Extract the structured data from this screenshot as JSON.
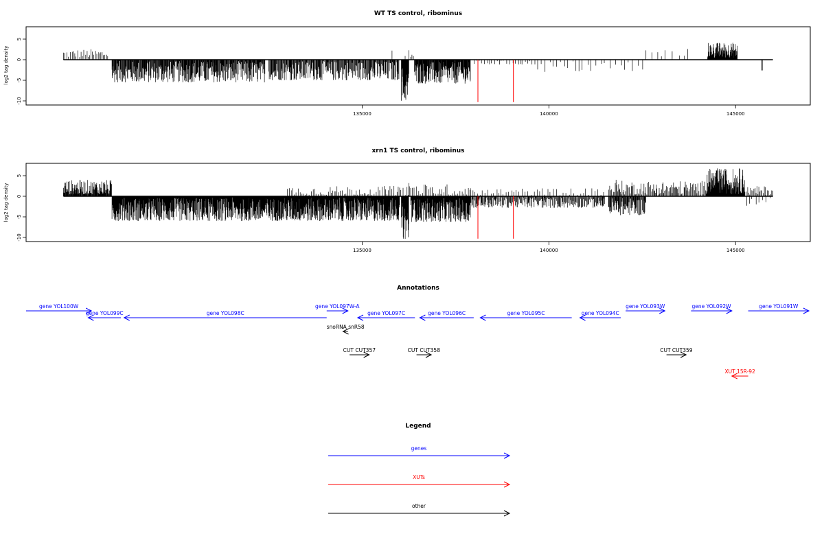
{
  "colors": {
    "gene": "#0000ff",
    "xut": "#ff0000",
    "other": "#000000",
    "marker": "#ff0000"
  },
  "chart_data": [
    {
      "type": "bar",
      "title": "WT TS control, ribominus",
      "ylabel": "log2 tag density",
      "xlim": [
        126000,
        147000
      ],
      "ylim": [
        -11,
        8
      ],
      "x_ticks": [
        135000,
        140000,
        145000
      ],
      "y_ticks": [
        5,
        0,
        -5,
        -10
      ],
      "grid": false,
      "red_marker_positions": [
        138100,
        139050
      ],
      "segments": [
        {
          "x0": 127000,
          "x1": 128200,
          "min": 0.5,
          "max": 2.6,
          "density": 0.35
        },
        {
          "x0": 128300,
          "x1": 132400,
          "min": -5.5,
          "max": -0.3,
          "density": 1.1
        },
        {
          "x0": 132500,
          "x1": 136000,
          "min": -5.0,
          "max": -0.3,
          "density": 0.9
        },
        {
          "x0": 136050,
          "x1": 136250,
          "min": -10,
          "max": -1.5,
          "density": 1.6
        },
        {
          "x0": 136300,
          "x1": 136400,
          "min": 0.5,
          "max": 2.2,
          "density": 0.4
        },
        {
          "x0": 136400,
          "x1": 137900,
          "min": -5.8,
          "max": -0.5,
          "density": 1.3
        },
        {
          "x0": 138000,
          "x1": 139700,
          "min": -1.2,
          "max": -0.2,
          "density": 0.2
        },
        {
          "x0": 139700,
          "x1": 142600,
          "min": -3.0,
          "max": -0.2,
          "density": 0.12
        },
        {
          "x0": 142600,
          "x1": 143800,
          "min": 0.4,
          "max": 2.8,
          "density": 0.1
        },
        {
          "x0": 144250,
          "x1": 145050,
          "min": 0.5,
          "max": 4.2,
          "density": 1.8
        },
        {
          "x0": 145700,
          "x1": 145720,
          "min": -2.6,
          "max": -2.6,
          "density": 1
        }
      ],
      "spikes": [
        [
          135800,
          2.2
        ],
        [
          136150,
          0.9
        ],
        [
          136250,
          2.3
        ],
        [
          135850,
          -4.8
        ]
      ]
    },
    {
      "type": "bar",
      "title": "xrn1 TS control, ribominus",
      "ylabel": "log2 tag density",
      "xlim": [
        126000,
        147000
      ],
      "ylim": [
        -11,
        8
      ],
      "x_ticks": [
        135000,
        140000,
        145000
      ],
      "y_ticks": [
        5,
        0,
        -5,
        -10
      ],
      "grid": false,
      "red_marker_positions": [
        138100,
        139050
      ],
      "segments": [
        {
          "x0": 127000,
          "x1": 128300,
          "min": 0.5,
          "max": 4.0,
          "density": 1.2
        },
        {
          "x0": 128300,
          "x1": 136000,
          "min": -6.0,
          "max": -0.3,
          "density": 1.6
        },
        {
          "x0": 133000,
          "x1": 136300,
          "min": 0.3,
          "max": 2.5,
          "density": 0.3
        },
        {
          "x0": 136050,
          "x1": 136250,
          "min": -10.4,
          "max": -1.5,
          "density": 1.8
        },
        {
          "x0": 136300,
          "x1": 137900,
          "min": -6.2,
          "max": -0.5,
          "density": 1.5
        },
        {
          "x0": 136300,
          "x1": 137900,
          "min": 0.3,
          "max": 3.0,
          "density": 0.3
        },
        {
          "x0": 137900,
          "x1": 141500,
          "min": -2.8,
          "max": -0.2,
          "density": 0.8
        },
        {
          "x0": 137900,
          "x1": 141500,
          "min": 0.3,
          "max": 2.0,
          "density": 0.2
        },
        {
          "x0": 141600,
          "x1": 142600,
          "min": -4.6,
          "max": -0.3,
          "density": 1.0
        },
        {
          "x0": 141600,
          "x1": 144200,
          "min": 0.4,
          "max": 3.8,
          "density": 0.6
        },
        {
          "x0": 144200,
          "x1": 145250,
          "min": 0.5,
          "max": 6.8,
          "density": 2.0
        },
        {
          "x0": 145250,
          "x1": 146000,
          "min": 0.3,
          "max": 2.5,
          "density": 0.5
        },
        {
          "x0": 145300,
          "x1": 146000,
          "min": -2.4,
          "max": -0.3,
          "density": 0.15
        }
      ],
      "spikes": [
        [
          135850,
          2.5
        ],
        [
          136250,
          3.2
        ],
        [
          145100,
          6.8
        ],
        [
          141800,
          4.0
        ]
      ]
    }
  ],
  "annotations": {
    "title": "Annotations",
    "features": [
      {
        "label": "gene YOL100W",
        "type": "gene",
        "dir": 1,
        "x0": 126000,
        "x1": 128000,
        "row": 0
      },
      {
        "label": "gene YOL099C",
        "type": "gene",
        "dir": -1,
        "x0": 127900,
        "x1": 128900,
        "row": 1
      },
      {
        "label": "gene YOL098C",
        "type": "gene",
        "dir": -1,
        "x0": 129000,
        "x1": 135200,
        "row": 1
      },
      {
        "label": "gene YOL097W-A",
        "type": "gene",
        "dir": 1,
        "x0": 135200,
        "x1": 135850,
        "row": 0
      },
      {
        "label": "gene YOL097C",
        "type": "gene",
        "dir": -1,
        "x0": 136150,
        "x1": 137900,
        "row": 1
      },
      {
        "label": "gene YOL096C",
        "type": "gene",
        "dir": -1,
        "x0": 138050,
        "x1": 139700,
        "row": 1
      },
      {
        "label": "gene YOL095C",
        "type": "gene",
        "dir": -1,
        "x0": 139900,
        "x1": 142700,
        "row": 1
      },
      {
        "label": "gene YOL094C",
        "type": "gene",
        "dir": -1,
        "x0": 142950,
        "x1": 144200,
        "row": 1
      },
      {
        "label": "gene YOL093W",
        "type": "gene",
        "dir": 1,
        "x0": 144350,
        "x1": 145550,
        "row": 0
      },
      {
        "label": "gene YOL092W",
        "type": "gene",
        "dir": 1,
        "x0": 146350,
        "x1": 147600,
        "row": 0
      },
      {
        "label": "gene YOL091W",
        "type": "gene",
        "dir": 1,
        "x0": 148100,
        "x1": 150000,
        "row": 0
      },
      {
        "label": "snoRNA snR58",
        "type": "other",
        "dir": -1,
        "x0": 135700,
        "x1": 135850,
        "row": 2
      },
      {
        "label": "CUT CUT357",
        "type": "other",
        "dir": 1,
        "x0": 135900,
        "x1": 136500,
        "row": 3
      },
      {
        "label": "CUT CUT358",
        "type": "other",
        "dir": 1,
        "x0": 137950,
        "x1": 138400,
        "row": 3
      },
      {
        "label": "CUT CUT359",
        "type": "other",
        "dir": 1,
        "x0": 145600,
        "x1": 146200,
        "row": 3
      },
      {
        "label": "XUT 15R-92",
        "type": "xut",
        "dir": -1,
        "x0": 147600,
        "x1": 148100,
        "row": 4
      }
    ]
  },
  "legend": {
    "title": "Legend",
    "entries": [
      {
        "label": "genes",
        "type": "gene"
      },
      {
        "label": "XUTs",
        "type": "xut"
      },
      {
        "label": "other",
        "type": "other"
      }
    ]
  }
}
